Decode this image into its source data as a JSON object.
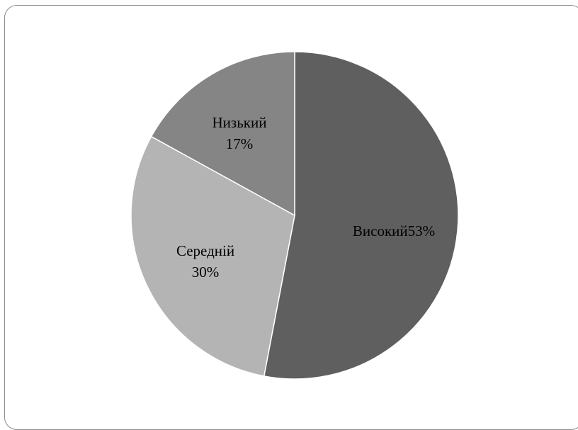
{
  "chart_data": {
    "type": "pie",
    "title": "",
    "start_angle_deg": 0,
    "direction": "clockwise",
    "slices": [
      {
        "label": "Високий",
        "value": 53,
        "display": "Високий53%",
        "lines": [
          "Високий53%"
        ],
        "color": "#5f5f5f"
      },
      {
        "label": "Середній",
        "value": 30,
        "display": "Середній 30%",
        "lines": [
          "Середній",
          "30%"
        ],
        "color": "#b4b4b4"
      },
      {
        "label": "Низький",
        "value": 17,
        "display": "Низький 17%",
        "lines": [
          "Низький",
          "17%"
        ],
        "color": "#858585"
      }
    ],
    "slice_border_color": "#ffffff",
    "legend": "none"
  }
}
